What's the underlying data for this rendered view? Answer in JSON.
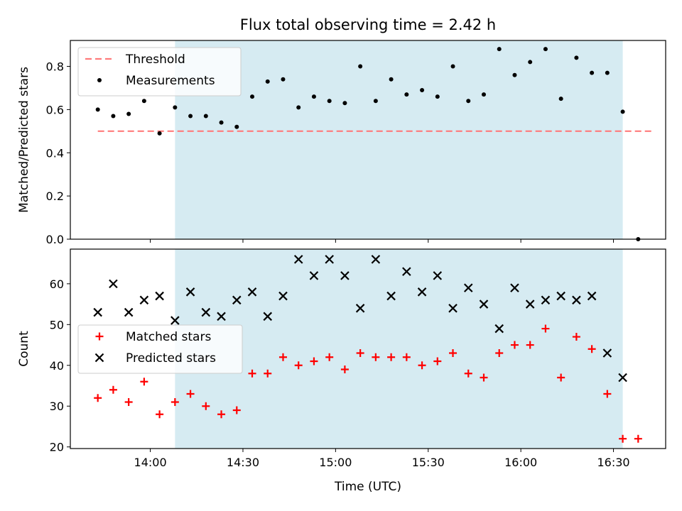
{
  "chart_data": {
    "title": "Flux total observing time = 2.42 h",
    "xlabel": "Time (UTC)",
    "x_ticks": [
      "14:00",
      "14:30",
      "15:00",
      "15:30",
      "16:00",
      "16:30"
    ],
    "x_tick_minutes": [
      840,
      870,
      900,
      930,
      960,
      990
    ],
    "x_range_minutes": [
      814.1,
      1006.9
    ],
    "highlight_span_minutes": [
      848,
      993
    ],
    "colors": {
      "highlight": "#add8e6",
      "threshold": "#ff7b7b",
      "measurements": "#000000",
      "matched": "#ff0000",
      "predicted": "#000000"
    },
    "panels": [
      {
        "type": "scatter",
        "ylabel": "Matched/Predicted stars",
        "ylim": [
          0.0,
          0.92
        ],
        "yticks": [
          "0.0",
          "0.2",
          "0.4",
          "0.6",
          "0.8"
        ],
        "yticks_values": [
          0.0,
          0.2,
          0.4,
          0.6,
          0.8
        ],
        "legend_placement": "upper-left",
        "threshold": {
          "name": "Threshold",
          "y": 0.5,
          "x": [
            823,
            1003
          ]
        },
        "series": [
          {
            "name": "Measurements",
            "marker": "dot",
            "x": [
              823,
              828,
              833,
              838,
              843,
              848,
              853,
              858,
              863,
              868,
              873,
              878,
              883,
              888,
              893,
              898,
              903,
              908,
              913,
              918,
              923,
              928,
              933,
              938,
              943,
              948,
              953,
              958,
              963,
              968,
              973,
              978,
              983,
              988,
              993,
              998
            ],
            "y": [
              0.6,
              0.57,
              0.58,
              0.64,
              0.49,
              0.61,
              0.57,
              0.57,
              0.54,
              0.52,
              0.66,
              0.73,
              0.74,
              0.61,
              0.66,
              0.64,
              0.63,
              0.8,
              0.64,
              0.74,
              0.67,
              0.69,
              0.66,
              0.8,
              0.64,
              0.67,
              0.88,
              0.76,
              0.82,
              0.88,
              0.65,
              0.84,
              0.77,
              0.77,
              0.59,
              0.0
            ]
          }
        ]
      },
      {
        "type": "scatter",
        "ylabel": "Count",
        "ylim": [
          19.6,
          68.5
        ],
        "yticks": [
          "20",
          "30",
          "40",
          "50",
          "60"
        ],
        "yticks_values": [
          20,
          30,
          40,
          50,
          60
        ],
        "legend_placement": "center-left",
        "series": [
          {
            "name": "Matched stars",
            "marker": "plus",
            "x": [
              823,
              828,
              833,
              838,
              843,
              848,
              853,
              858,
              863,
              868,
              873,
              878,
              883,
              888,
              893,
              898,
              903,
              908,
              913,
              918,
              923,
              928,
              933,
              938,
              943,
              948,
              953,
              958,
              963,
              968,
              973,
              978,
              983,
              988,
              993,
              998
            ],
            "y": [
              32,
              34,
              31,
              36,
              28,
              31,
              33,
              30,
              28,
              29,
              38,
              38,
              42,
              40,
              41,
              42,
              39,
              43,
              42,
              42,
              42,
              40,
              41,
              43,
              38,
              37,
              43,
              45,
              45,
              49,
              37,
              47,
              44,
              33,
              22,
              22
            ]
          },
          {
            "name": "Predicted stars",
            "marker": "x",
            "x": [
              823,
              828,
              833,
              838,
              843,
              848,
              853,
              858,
              863,
              868,
              873,
              878,
              883,
              888,
              893,
              898,
              903,
              908,
              913,
              918,
              923,
              928,
              933,
              938,
              943,
              948,
              953,
              958,
              963,
              968,
              973,
              978,
              983,
              988,
              993
            ],
            "y": [
              53,
              60,
              53,
              56,
              57,
              51,
              58,
              53,
              52,
              56,
              58,
              52,
              57,
              66,
              62,
              66,
              62,
              54,
              66,
              57,
              63,
              58,
              62,
              54,
              59,
              55,
              49,
              59,
              55,
              56,
              57,
              56,
              57,
              43,
              37
            ]
          }
        ]
      }
    ]
  }
}
